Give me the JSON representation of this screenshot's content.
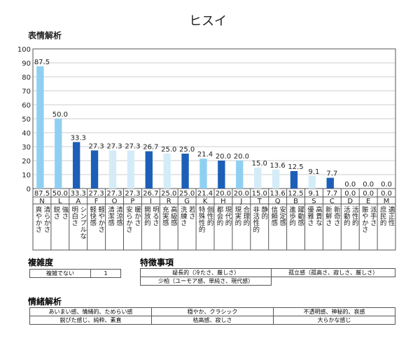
{
  "title": "ヒスイ",
  "chart_section": "表情解析",
  "chart_data": {
    "type": "bar",
    "categories": [
      "N",
      "L",
      "A",
      "F",
      "O",
      "P",
      "I",
      "R",
      "G",
      "K",
      "H",
      "J",
      "T",
      "Q",
      "B",
      "S",
      "C",
      "D",
      "E",
      "M"
    ],
    "descriptions": [
      [
        "爽やかさ",
        "清らかさ"
      ],
      [
        "鋭さ",
        "強さ"
      ],
      [
        "明白さ",
        "シンプルな"
      ],
      [
        "軽快感",
        "軽やかさ"
      ],
      [
        "清潔感",
        "清涼感"
      ],
      [
        "安らかさ",
        "暖かさ"
      ],
      [
        "開放的",
        "明るさ"
      ],
      [
        "充実感",
        "高級感"
      ],
      [
        "洗練さ",
        "若さ"
      ],
      [
        "特殊性的",
        "個性的"
      ],
      [
        "都会的",
        "現代的"
      ],
      [
        "現実的",
        "合理的"
      ],
      [
        "非活性的",
        "静的"
      ],
      [
        "信頼感",
        "安定感"
      ],
      [
        "進歩的",
        "躍動感"
      ],
      [
        "優雅さ",
        "高貴な"
      ],
      [
        "新鮮さ",
        "新奇さ"
      ],
      [
        "活動的",
        "活性的"
      ],
      [
        "賑やかさ",
        "派手さ"
      ],
      [
        "庶民的",
        "適正性"
      ]
    ],
    "values": [
      87.5,
      50,
      33.3,
      27.3,
      27.3,
      27.3,
      26.7,
      25,
      25,
      21.4,
      20,
      20,
      15,
      13.6,
      12.5,
      9.1,
      7.7,
      0,
      0,
      0
    ],
    "value_labels": [
      "87.5",
      "50.0",
      "33.3",
      "27.3",
      "27.3",
      "27.3",
      "26.7",
      "25.0",
      "25.0",
      "21.4",
      "20.0",
      "20.0",
      "15.0",
      "13.6",
      "12.5",
      "9.1",
      "7.7",
      "0.0",
      "0.0",
      "0.0"
    ],
    "colors": [
      "#8fd0f2",
      "#8fd0f2",
      "#1c5fb8",
      "#1c5fb8",
      "#d4ecf8",
      "#d4ecf8",
      "#1c5fb8",
      "#d4ecf8",
      "#1c5fb8",
      "#8fd0f2",
      "#1c5fb8",
      "#8fd0f2",
      "#d4ecf8",
      "#d4ecf8",
      "#1c5fb8",
      "#d4ecf8",
      "#1c5fb8",
      "#d4ecf8",
      "#d4ecf8",
      "#d4ecf8"
    ],
    "ylim": [
      0,
      100
    ],
    "yticks": [
      0,
      10,
      20,
      30,
      40,
      50,
      60,
      70,
      80,
      90,
      100
    ],
    "grid": true
  },
  "complexity": {
    "heading": "複雑度",
    "label": "複雑でない",
    "value": 1
  },
  "features": {
    "heading": "特徴事項",
    "rows": [
      [
        "疑長的（冷たさ、厳しさ）",
        "孤立感（孤高さ、寂しさ、厳しさ）"
      ],
      [
        "少柏（ユーモア感、単純さ、現代感）"
      ]
    ]
  },
  "emotion": {
    "heading": "情緒解析",
    "rows": [
      [
        "あいまい感、情緒的、ためらい感",
        "穏やか、クラシック",
        "不透明感、神秘的、哀感"
      ],
      [
        "鋭ぴた感じ、純粋、素直",
        "枯高感、寂しさ",
        "大らかな感じ"
      ]
    ]
  }
}
